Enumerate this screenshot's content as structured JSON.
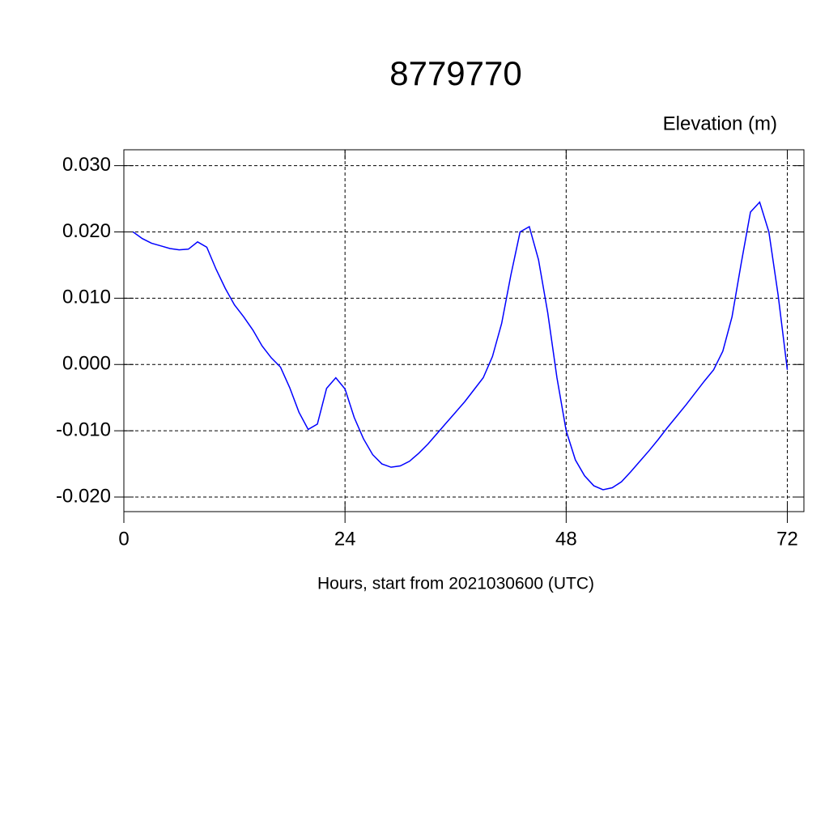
{
  "chart_data": {
    "type": "line",
    "title": "8779770",
    "subtitle": "Elevation (m)",
    "x_label": "Hours, start from 2021030600 (UTC)",
    "x": [
      1,
      2,
      3,
      4,
      5,
      6,
      7,
      8,
      9,
      10,
      11,
      12,
      13,
      14,
      15,
      16,
      17,
      18,
      19,
      20,
      21,
      22,
      23,
      24,
      25,
      26,
      27,
      28,
      29,
      30,
      31,
      32,
      33,
      34,
      35,
      36,
      37,
      38,
      39,
      40,
      41,
      42,
      43,
      44,
      45,
      46,
      47,
      48,
      49,
      50,
      51,
      52,
      53,
      54,
      55,
      56,
      57,
      58,
      59,
      60,
      61,
      62,
      63,
      64,
      65,
      66,
      67,
      68,
      69,
      70,
      71,
      72
    ],
    "series": [
      {
        "name": "Elevation",
        "color": "#0000ff",
        "values": [
          0.02,
          0.019,
          0.0183,
          0.0179,
          0.0175,
          0.0173,
          0.0174,
          0.0185,
          0.0177,
          0.0144,
          0.0115,
          0.009,
          0.0072,
          0.0052,
          0.0028,
          0.001,
          -0.0004,
          -0.0035,
          -0.0072,
          -0.0098,
          -0.009,
          -0.0036,
          -0.002,
          -0.0037,
          -0.008,
          -0.0112,
          -0.0136,
          -0.015,
          -0.0155,
          -0.0153,
          -0.0146,
          -0.0134,
          -0.012,
          -0.0104,
          -0.0088,
          -0.0072,
          -0.0056,
          -0.0038,
          -0.002,
          0.0012,
          0.0062,
          0.0135,
          0.02,
          0.0208,
          0.0158,
          0.0078,
          -0.002,
          -0.01,
          -0.0144,
          -0.0168,
          -0.0183,
          -0.0189,
          -0.0186,
          -0.0177,
          -0.0162,
          -0.0146,
          -0.013,
          -0.0113,
          -0.0095,
          -0.0078,
          -0.0061,
          -0.0043,
          -0.0025,
          -0.0008,
          0.002,
          0.0072,
          0.0153,
          0.023,
          0.0245,
          0.02,
          0.0105,
          -0.0008
        ]
      }
    ],
    "xlim": [
      0,
      73.8
    ],
    "xticks": [
      0,
      24,
      48,
      72
    ],
    "ylim": [
      -0.0222,
      0.0324
    ],
    "yticks": [
      {
        "value": -0.02,
        "label": "-0.020"
      },
      {
        "value": -0.01,
        "label": "-0.010"
      },
      {
        "value": 0,
        "label": "0.000"
      },
      {
        "value": 0.01,
        "label": "0.010"
      },
      {
        "value": 0.02,
        "label": "0.020"
      },
      {
        "value": 0.03,
        "label": "0.030"
      }
    ],
    "grid": true
  }
}
